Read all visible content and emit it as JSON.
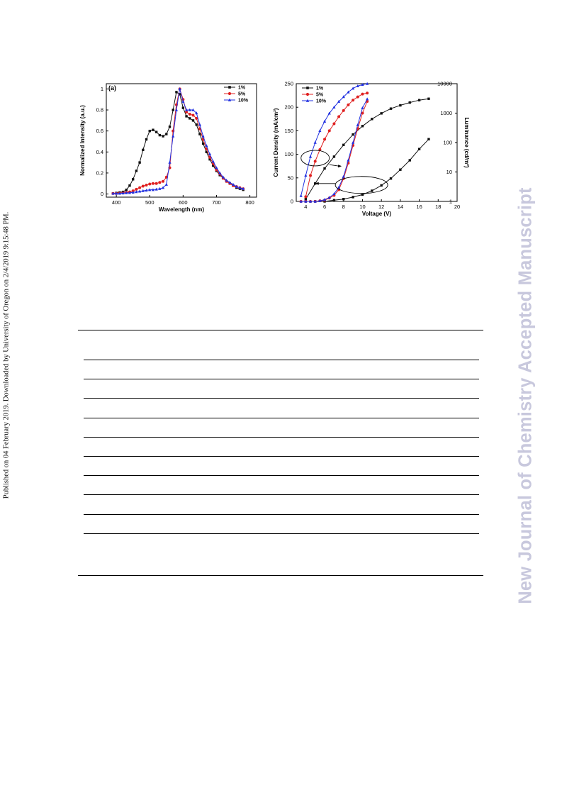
{
  "side_note": "Published on 04 February 2019. Downloaded by University of Oregon on 2/4/2019 9:15:48 PM.",
  "watermark": "New Journal of Chemistry Accepted Manuscript",
  "colors": {
    "s1": "#111111",
    "s5": "#e02020",
    "s10": "#1f2fe0"
  },
  "chart_data": [
    {
      "type": "line",
      "panel_label": "(a)",
      "xlabel": "Wavelength (nm)",
      "ylabel": "Normalized Intensity (a.u.)",
      "xlim": [
        370,
        820
      ],
      "ylim": [
        -0.03,
        1.05
      ],
      "xticks": [
        400,
        500,
        600,
        700,
        800
      ],
      "yticks": [
        0.0,
        0.2,
        0.4,
        0.6,
        0.8,
        1.0
      ],
      "legend": [
        "1%",
        "5%",
        "10%"
      ],
      "legend_position": "top-right",
      "series": [
        {
          "name": "1%",
          "color": "#111111",
          "marker": "square",
          "x": [
            390,
            400,
            410,
            420,
            430,
            440,
            450,
            460,
            470,
            480,
            490,
            500,
            510,
            520,
            530,
            540,
            550,
            560,
            570,
            580,
            590,
            600,
            610,
            620,
            630,
            640,
            650,
            660,
            670,
            680,
            690,
            700,
            710,
            720,
            730,
            740,
            750,
            760,
            770,
            780
          ],
          "y": [
            0.005,
            0.01,
            0.015,
            0.02,
            0.04,
            0.08,
            0.14,
            0.22,
            0.3,
            0.42,
            0.52,
            0.6,
            0.61,
            0.59,
            0.56,
            0.55,
            0.57,
            0.64,
            0.8,
            0.97,
            0.95,
            0.82,
            0.74,
            0.72,
            0.7,
            0.66,
            0.57,
            0.48,
            0.4,
            0.33,
            0.27,
            0.22,
            0.18,
            0.15,
            0.12,
            0.1,
            0.08,
            0.06,
            0.05,
            0.04
          ]
        },
        {
          "name": "5%",
          "color": "#e02020",
          "marker": "circle",
          "x": [
            390,
            400,
            410,
            420,
            430,
            440,
            450,
            460,
            470,
            480,
            490,
            500,
            510,
            520,
            530,
            540,
            550,
            560,
            570,
            580,
            590,
            600,
            610,
            620,
            630,
            640,
            650,
            660,
            670,
            680,
            690,
            700,
            710,
            720,
            730,
            740,
            750,
            760,
            770,
            780
          ],
          "y": [
            0.005,
            0.005,
            0.008,
            0.01,
            0.015,
            0.02,
            0.03,
            0.045,
            0.06,
            0.075,
            0.085,
            0.095,
            0.1,
            0.1,
            0.11,
            0.12,
            0.16,
            0.25,
            0.6,
            0.85,
            1.0,
            0.9,
            0.78,
            0.76,
            0.75,
            0.72,
            0.62,
            0.52,
            0.43,
            0.35,
            0.29,
            0.23,
            0.19,
            0.15,
            0.12,
            0.1,
            0.08,
            0.07,
            0.06,
            0.05
          ]
        },
        {
          "name": "10%",
          "color": "#1f2fe0",
          "marker": "triangle",
          "x": [
            390,
            400,
            410,
            420,
            430,
            440,
            450,
            460,
            470,
            480,
            490,
            500,
            510,
            520,
            530,
            540,
            550,
            560,
            570,
            580,
            590,
            600,
            610,
            620,
            630,
            640,
            650,
            660,
            670,
            680,
            690,
            700,
            710,
            720,
            730,
            740,
            750,
            760,
            770,
            780
          ],
          "y": [
            0.005,
            0.005,
            0.005,
            0.008,
            0.01,
            0.012,
            0.015,
            0.02,
            0.025,
            0.03,
            0.035,
            0.04,
            0.04,
            0.045,
            0.05,
            0.06,
            0.09,
            0.3,
            0.55,
            0.8,
            1.0,
            0.88,
            0.8,
            0.8,
            0.8,
            0.77,
            0.66,
            0.55,
            0.46,
            0.38,
            0.31,
            0.25,
            0.2,
            0.16,
            0.13,
            0.11,
            0.09,
            0.07,
            0.06,
            0.05
          ]
        }
      ]
    },
    {
      "type": "line",
      "xlabel": "Voltage (V)",
      "ylabel": "Current Density (mA/cm²)",
      "ylabel_right": "Luminance (cd/m²)",
      "xlim": [
        3,
        20
      ],
      "ylim": [
        0,
        250
      ],
      "y2lim": [
        1,
        10000
      ],
      "y2_scale": "log",
      "xticks": [
        4,
        6,
        8,
        10,
        12,
        14,
        16,
        18,
        20
      ],
      "yticks": [
        0,
        50,
        100,
        150,
        200,
        250
      ],
      "y2ticks": [
        1,
        10,
        100,
        1000,
        10000
      ],
      "legend": [
        "1%",
        "5%",
        "10%"
      ],
      "legend_position": "top-left",
      "series": [
        {
          "name": "1%",
          "color": "#111111",
          "marker": "square",
          "axis": "left",
          "x": [
            4,
            5,
            6,
            7,
            8,
            9,
            10,
            11,
            12,
            13,
            14,
            15,
            16,
            17
          ],
          "y": [
            5,
            38,
            70,
            95,
            120,
            142,
            160,
            175,
            187,
            197,
            204,
            210,
            215,
            218
          ]
        },
        {
          "name": "5%",
          "color": "#e02020",
          "marker": "circle",
          "axis": "left",
          "x": [
            4,
            4.5,
            5,
            5.5,
            6,
            6.5,
            7,
            7.5,
            8,
            8.5,
            9,
            9.5,
            10,
            10.5
          ],
          "y": [
            10,
            55,
            85,
            110,
            132,
            150,
            165,
            180,
            193,
            205,
            215,
            222,
            228,
            230
          ]
        },
        {
          "name": "10%",
          "color": "#1f2fe0",
          "marker": "triangle",
          "axis": "left",
          "x": [
            3.5,
            4,
            4.5,
            5,
            5.5,
            6,
            6.5,
            7,
            7.5,
            8,
            8.5,
            9,
            9.5,
            10,
            10.5
          ],
          "y": [
            12,
            55,
            95,
            125,
            150,
            170,
            187,
            200,
            212,
            222,
            232,
            240,
            245,
            248,
            250
          ]
        },
        {
          "name": "1%",
          "color": "#111111",
          "marker": "square",
          "axis": "right",
          "x": [
            4,
            5,
            6,
            7,
            8,
            9,
            10,
            11,
            12,
            13,
            14,
            15,
            16,
            17
          ],
          "y": [
            1,
            1,
            1,
            1.1,
            1.2,
            1.4,
            1.7,
            2.3,
            3.5,
            6,
            12,
            25,
            60,
            130
          ]
        },
        {
          "name": "5%",
          "color": "#e02020",
          "marker": "circle",
          "axis": "right",
          "x": [
            3.5,
            4,
            4.5,
            5,
            5.5,
            6,
            6.5,
            7,
            7.5,
            8,
            8.5,
            9,
            9.5,
            10,
            10.5
          ],
          "y": [
            1,
            1,
            1,
            1,
            1.05,
            1.1,
            1.3,
            1.6,
            2.5,
            6,
            20,
            80,
            300,
            1000,
            2500
          ]
        },
        {
          "name": "10%",
          "color": "#1f2fe0",
          "marker": "triangle",
          "axis": "right",
          "x": [
            3.5,
            4,
            4.5,
            5,
            5.5,
            6,
            6.5,
            7,
            7.5,
            8,
            8.5,
            9,
            9.5,
            10,
            10.5
          ],
          "y": [
            1,
            1,
            1,
            1,
            1.05,
            1.15,
            1.35,
            1.8,
            3,
            7,
            25,
            100,
            400,
            1500,
            3000
          ]
        }
      ]
    }
  ]
}
